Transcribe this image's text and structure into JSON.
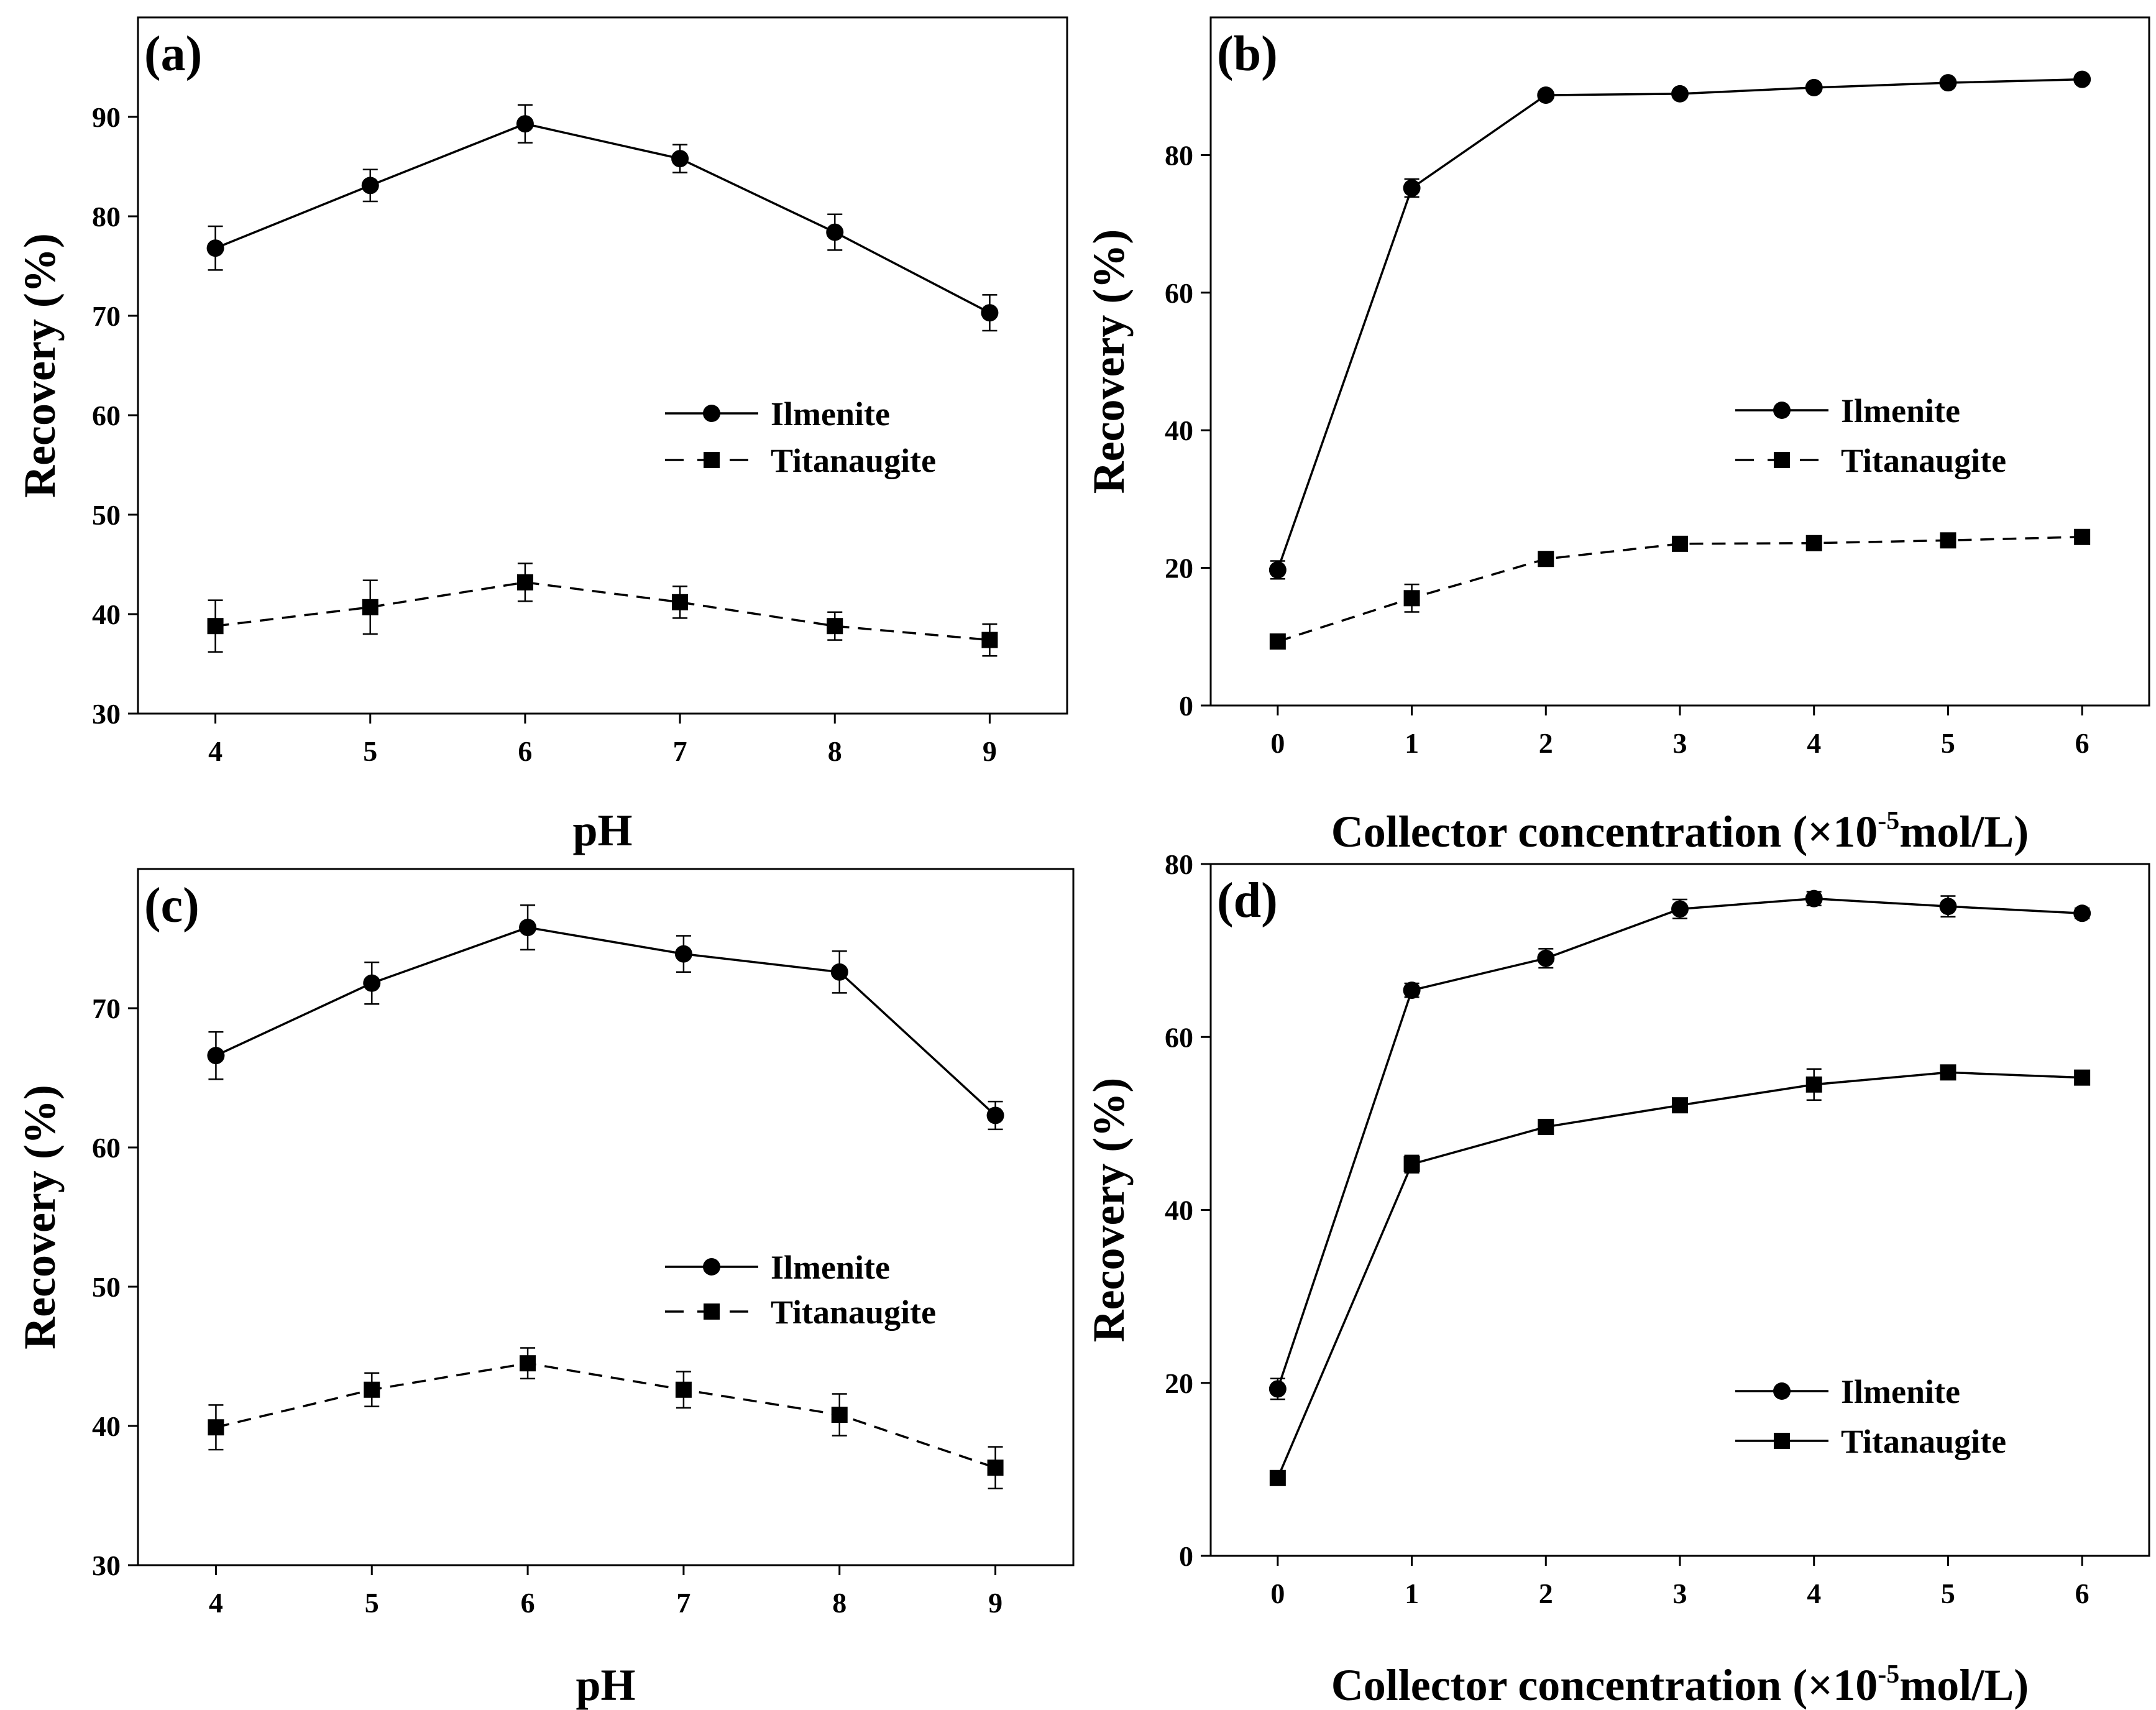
{
  "chart_data": [
    {
      "type": "line",
      "panel_label": "(a)",
      "xlabel": "pH",
      "ylabel": "Recovery (%)",
      "xlim": [
        3.5,
        9.5
      ],
      "ylim": [
        30,
        100
      ],
      "xticks": [
        4,
        5,
        6,
        7,
        8,
        9
      ],
      "yticks": [
        30,
        40,
        50,
        60,
        70,
        80,
        90
      ],
      "x": [
        4,
        5,
        6,
        7,
        8,
        9
      ],
      "legend_position": "right-middle",
      "series": [
        {
          "name": "Ilmenite",
          "marker": "circle",
          "dash": "solid",
          "values": [
            76.8,
            83.1,
            89.3,
            85.8,
            78.4,
            70.3
          ],
          "errors": [
            2.2,
            1.6,
            1.9,
            1.4,
            1.8,
            1.8
          ]
        },
        {
          "name": "Titanaugite",
          "marker": "square",
          "dash": "dashed",
          "values": [
            38.8,
            40.7,
            43.2,
            41.2,
            38.8,
            37.4
          ],
          "errors": [
            2.6,
            2.7,
            1.9,
            1.6,
            1.4,
            1.6
          ]
        }
      ]
    },
    {
      "type": "line",
      "panel_label": "(b)",
      "xlabel": "Collector concentration (×10",
      "xlabel_sup": "-5",
      "xlabel_suffix": "mol/L)",
      "ylabel": "Recovery (%)",
      "xlim": [
        -0.5,
        6.5
      ],
      "ylim": [
        0,
        100
      ],
      "xticks": [
        0,
        1,
        2,
        3,
        4,
        5,
        6
      ],
      "yticks": [
        0,
        20,
        40,
        60,
        80
      ],
      "x": [
        0,
        1,
        2,
        3,
        4,
        5,
        6
      ],
      "legend_position": "right-middle",
      "series": [
        {
          "name": "Ilmenite",
          "marker": "circle",
          "dash": "solid",
          "values": [
            19.7,
            75.2,
            88.7,
            88.9,
            89.8,
            90.5,
            91.0
          ],
          "errors": [
            1.3,
            1.3,
            0.5,
            0.4,
            0.4,
            0.4,
            0.4
          ]
        },
        {
          "name": "Titanaugite",
          "marker": "square",
          "dash": "dashed",
          "values": [
            9.3,
            15.6,
            21.3,
            23.5,
            23.6,
            24.0,
            24.5
          ],
          "errors": [
            0.5,
            2.0,
            0.8,
            0.5,
            0.5,
            0.5,
            0.5
          ]
        }
      ]
    },
    {
      "type": "line",
      "panel_label": "(c)",
      "xlabel": "pH",
      "ylabel": "Recovery (%)",
      "xlim": [
        3.5,
        9.5
      ],
      "ylim": [
        30,
        80
      ],
      "xticks": [
        4,
        5,
        6,
        7,
        8,
        9
      ],
      "yticks": [
        30,
        40,
        50,
        60,
        70
      ],
      "x": [
        4,
        5,
        6,
        7,
        8,
        9
      ],
      "legend_position": "right-middle",
      "series": [
        {
          "name": "Ilmenite",
          "marker": "circle",
          "dash": "solid",
          "values": [
            66.6,
            71.8,
            75.8,
            73.9,
            72.6,
            62.3
          ],
          "errors": [
            1.7,
            1.5,
            1.6,
            1.3,
            1.5,
            1.0
          ]
        },
        {
          "name": "Titanaugite",
          "marker": "square",
          "dash": "dashed",
          "values": [
            39.9,
            42.6,
            44.5,
            42.6,
            40.8,
            37.0
          ],
          "errors": [
            1.6,
            1.2,
            1.1,
            1.3,
            1.5,
            1.5
          ]
        }
      ]
    },
    {
      "type": "line",
      "panel_label": "(d)",
      "xlabel": "Collector concentration (×10",
      "xlabel_sup": "-5",
      "xlabel_suffix": "mol/L)",
      "ylabel": "Recovery (%)",
      "xlim": [
        -0.5,
        6.5
      ],
      "ylim": [
        0,
        80
      ],
      "xticks": [
        0,
        1,
        2,
        3,
        4,
        5,
        6
      ],
      "yticks": [
        0,
        20,
        40,
        60,
        80
      ],
      "x": [
        0,
        1,
        2,
        3,
        4,
        5,
        6
      ],
      "legend_position": "bottom-right",
      "series": [
        {
          "name": "Ilmenite",
          "marker": "circle",
          "dash": "solid",
          "values": [
            19.3,
            65.4,
            69.1,
            74.8,
            76.0,
            75.1,
            74.3
          ],
          "errors": [
            1.2,
            0.8,
            1.1,
            1.1,
            0.8,
            1.2,
            0.6
          ]
        },
        {
          "name": "Titanaugite",
          "marker": "square",
          "dash": "solid",
          "values": [
            9.0,
            45.3,
            49.6,
            52.1,
            54.5,
            55.9,
            55.3
          ],
          "errors": [
            0.5,
            1.0,
            0.6,
            0.6,
            1.8,
            0.6,
            0.5
          ]
        }
      ]
    }
  ]
}
